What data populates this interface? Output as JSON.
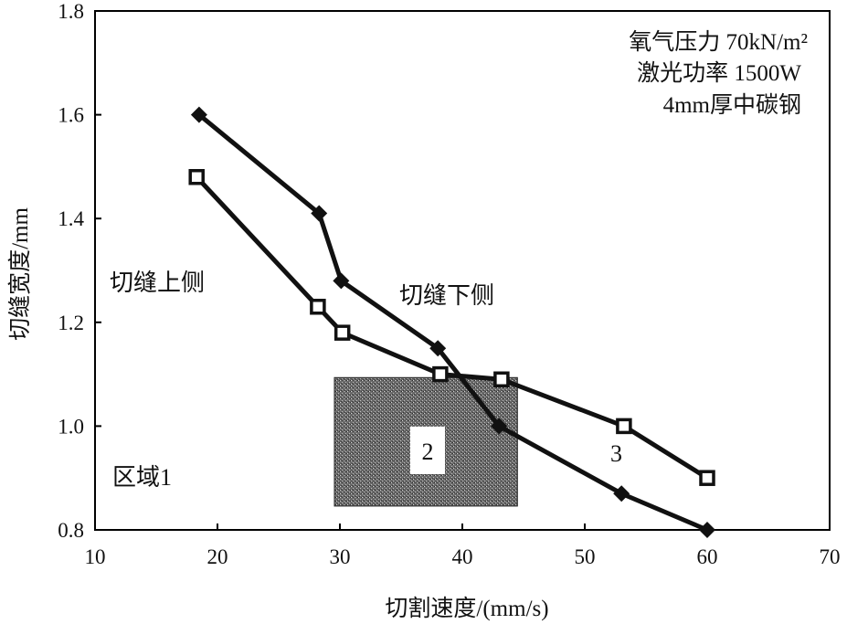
{
  "chart_data": {
    "type": "line",
    "title": "",
    "xlabel": "切割速度/(mm/s)",
    "ylabel": "切缝宽度/mm",
    "xlim": [
      10,
      70
    ],
    "ylim": [
      0.8,
      1.8
    ],
    "x_ticks": [
      10,
      20,
      30,
      40,
      50,
      60,
      70
    ],
    "y_ticks": [
      0.8,
      1.0,
      1.2,
      1.4,
      1.6,
      1.8
    ],
    "grid": false,
    "series": [
      {
        "name": "切缝下侧",
        "marker": "filled-diamond",
        "points": [
          [
            18.5,
            1.6
          ],
          [
            28.3,
            1.41
          ],
          [
            30.1,
            1.28
          ],
          [
            38.0,
            1.15
          ],
          [
            43.0,
            1.0
          ],
          [
            53.0,
            0.87
          ],
          [
            60.0,
            0.8
          ]
        ]
      },
      {
        "name": "切缝上侧",
        "marker": "open-square",
        "points": [
          [
            18.3,
            1.48
          ],
          [
            28.2,
            1.23
          ],
          [
            30.2,
            1.18
          ],
          [
            38.2,
            1.1
          ],
          [
            43.2,
            1.09
          ],
          [
            53.2,
            1.0
          ],
          [
            60.0,
            0.9
          ]
        ]
      }
    ],
    "conditions": [
      "氧气压力 70kN/m²",
      "激光功率 1500W",
      "4mm厚中碳钢"
    ],
    "annotations": {
      "region1": "区域1",
      "region2": "2",
      "region3": "3"
    },
    "shaded_region": {
      "x": [
        30,
        44.5
      ],
      "y": [
        0.86,
        1.09
      ]
    }
  }
}
